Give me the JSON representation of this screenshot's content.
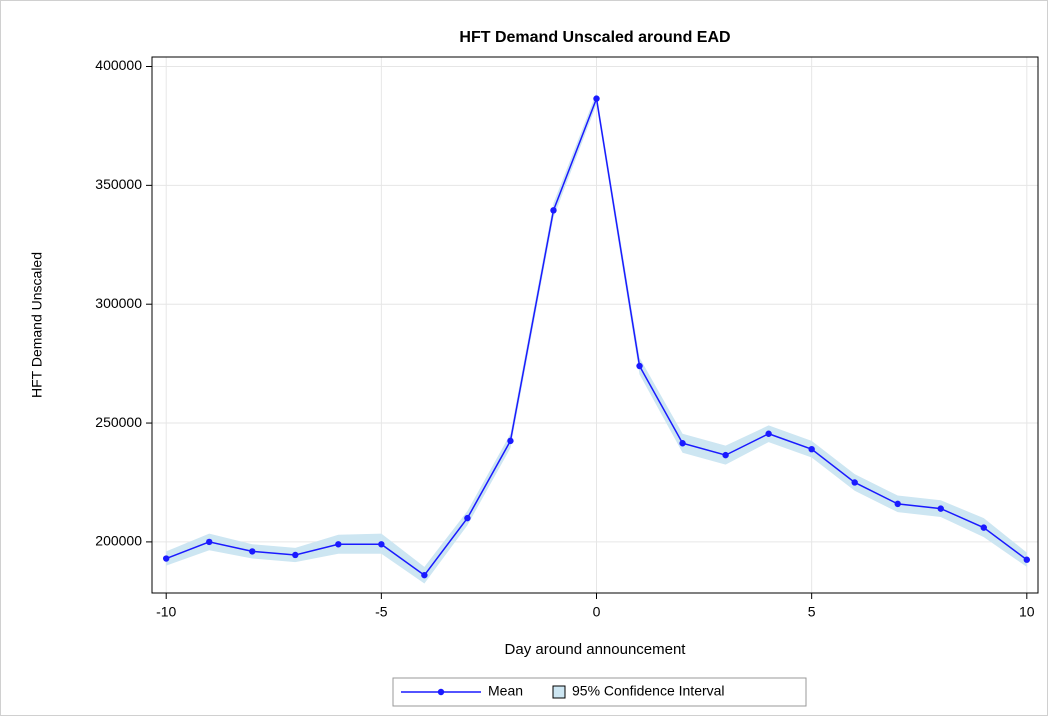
{
  "chart_data": {
    "type": "line",
    "title": "HFT Demand Unscaled around EAD",
    "x_label": "Day around announcement",
    "y_label": "HFT Demand Unscaled",
    "x": [
      -10,
      -9,
      -8,
      -7,
      -6,
      -5,
      -4,
      -3,
      -2,
      -1,
      0,
      1,
      2,
      3,
      4,
      5,
      6,
      7,
      8,
      9,
      10
    ],
    "series": [
      {
        "name": "Mean",
        "color": "#1a1aff",
        "values": [
          193000,
          200000,
          196000,
          194500,
          199000,
          199000,
          186000,
          210000,
          242500,
          339500,
          386500,
          274000,
          241500,
          236500,
          245500,
          239000,
          225000,
          216000,
          214000,
          206000,
          192500
        ]
      }
    ],
    "band": {
      "name": "95% Confidence Interval",
      "color": "#cde6f2",
      "lower": [
        190000,
        196500,
        193000,
        191500,
        195000,
        195000,
        182500,
        207000,
        239500,
        336500,
        384000,
        270500,
        237500,
        232500,
        242000,
        235500,
        221500,
        212500,
        210500,
        202000,
        189500
      ],
      "upper": [
        196000,
        203500,
        199000,
        197500,
        203000,
        203500,
        189500,
        213000,
        245500,
        342500,
        389000,
        277500,
        245500,
        240500,
        249000,
        242500,
        228500,
        219500,
        217500,
        210000,
        195500
      ]
    },
    "xlim": [
      -10.33,
      10.26
    ],
    "ylim": [
      178500,
      404000
    ],
    "xticks": [
      -10,
      -5,
      0,
      5,
      10
    ],
    "yticks": [
      200000,
      250000,
      300000,
      350000,
      400000
    ],
    "grid": true
  }
}
